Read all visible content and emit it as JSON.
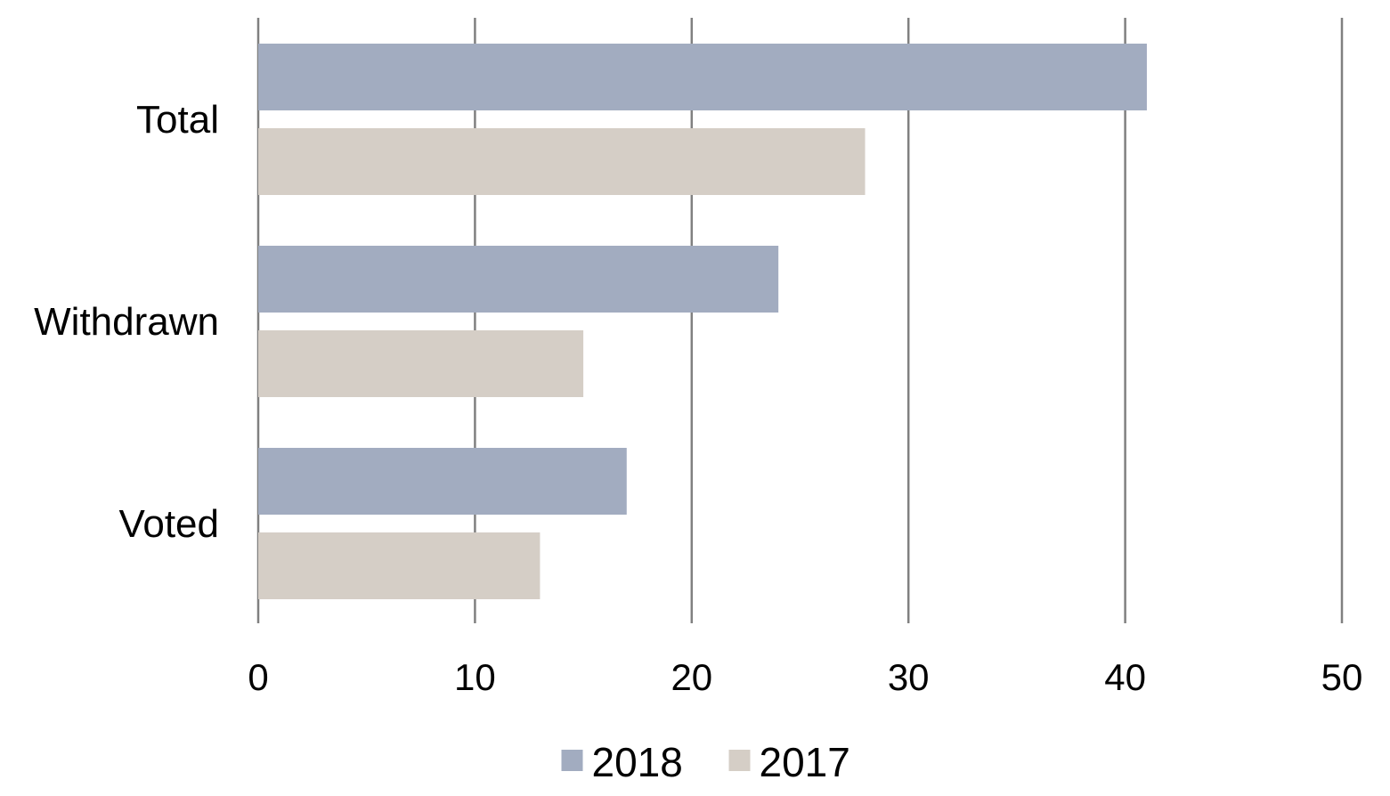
{
  "chart_data": {
    "type": "bar",
    "orientation": "horizontal",
    "categories": [
      "Total",
      "Withdrawn",
      "Voted"
    ],
    "series": [
      {
        "name": "2018",
        "color": "#a2acc0",
        "values": [
          41,
          24,
          17
        ]
      },
      {
        "name": "2017",
        "color": "#d5cec6",
        "values": [
          28,
          15,
          13
        ]
      }
    ],
    "xlim": [
      0,
      50
    ],
    "x_ticks": [
      0,
      10,
      20,
      30,
      40,
      50
    ],
    "grid": "vertical",
    "gridline_color": "#808080",
    "legend_position": "bottom-center",
    "title": "",
    "xlabel": "",
    "ylabel": ""
  }
}
